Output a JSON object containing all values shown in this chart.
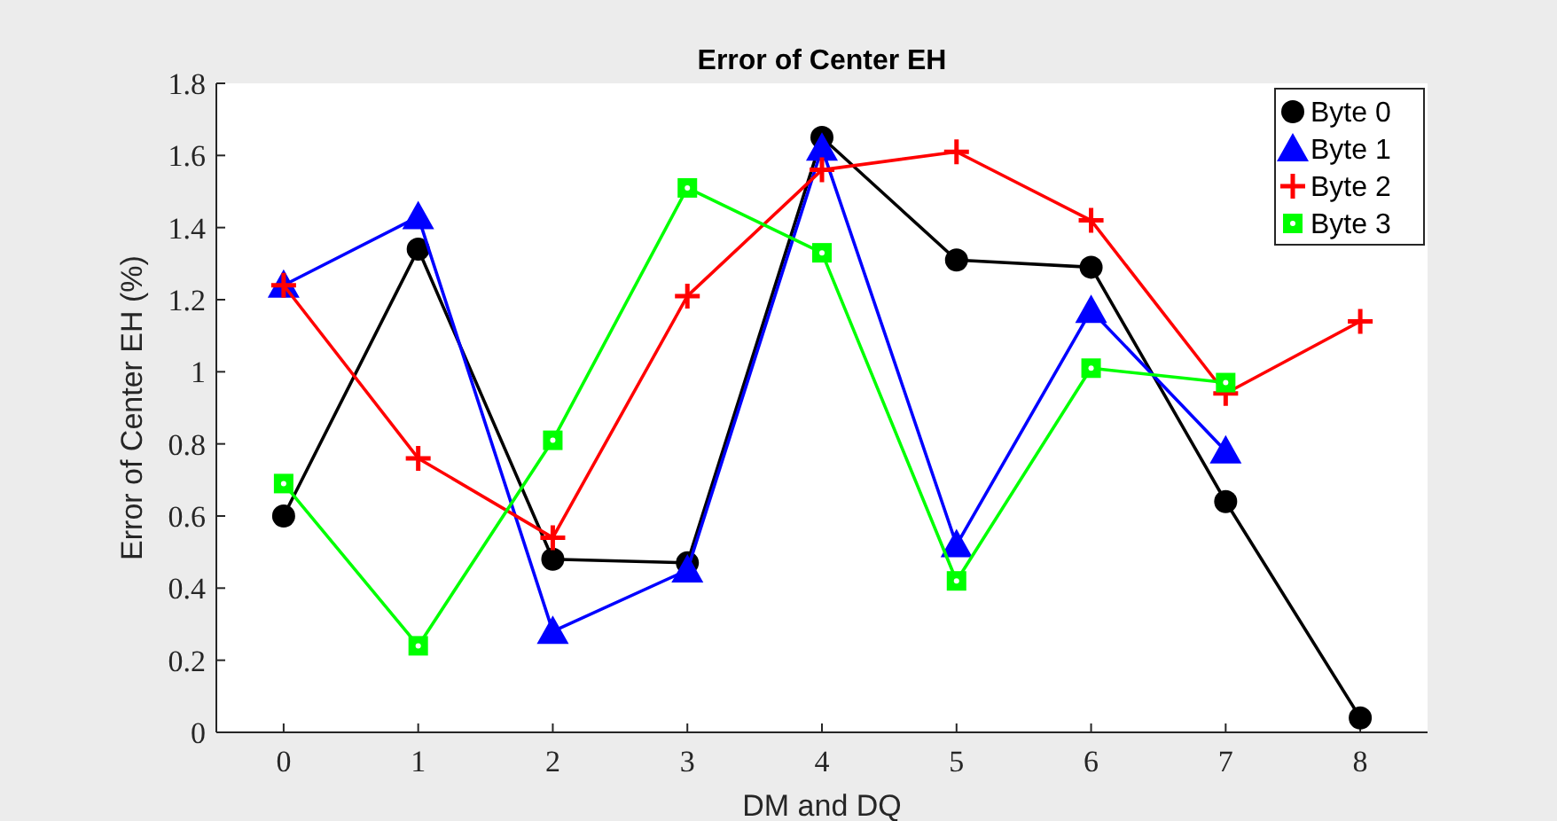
{
  "chart_data": {
    "type": "line",
    "title": "Error of Center EH",
    "xlabel": "DM and DQ",
    "ylabel": "Error of Center EH (%)",
    "x": [
      0,
      1,
      2,
      3,
      4,
      5,
      6,
      7,
      8
    ],
    "xlim": [
      -0.5,
      8.5
    ],
    "xticks": [
      0,
      1,
      2,
      3,
      4,
      5,
      6,
      7,
      8
    ],
    "ylim": [
      0,
      1.8
    ],
    "yticks": [
      0,
      0.2,
      0.4,
      0.6,
      0.8,
      1,
      1.2,
      1.4,
      1.6,
      1.8
    ],
    "grid": false,
    "legend": "top right",
    "series": [
      {
        "name": "Byte 0",
        "color": "#000000",
        "marker": "circle",
        "values": [
          0.6,
          1.34,
          0.48,
          0.47,
          1.65,
          1.31,
          1.29,
          0.64,
          0.04
        ]
      },
      {
        "name": "Byte 1",
        "color": "#0000ff",
        "marker": "triangle",
        "values": [
          1.24,
          1.43,
          0.28,
          0.45,
          1.62,
          0.52,
          1.17,
          0.78,
          null
        ]
      },
      {
        "name": "Byte 2",
        "color": "#ff0000",
        "marker": "cross",
        "values": [
          1.24,
          0.76,
          0.54,
          1.21,
          1.56,
          1.61,
          1.42,
          0.94,
          1.14
        ]
      },
      {
        "name": "Byte 3",
        "color": "#00ff00",
        "marker": "square",
        "values": [
          0.69,
          0.24,
          0.81,
          1.51,
          1.33,
          0.42,
          1.01,
          0.97,
          null
        ]
      }
    ]
  }
}
